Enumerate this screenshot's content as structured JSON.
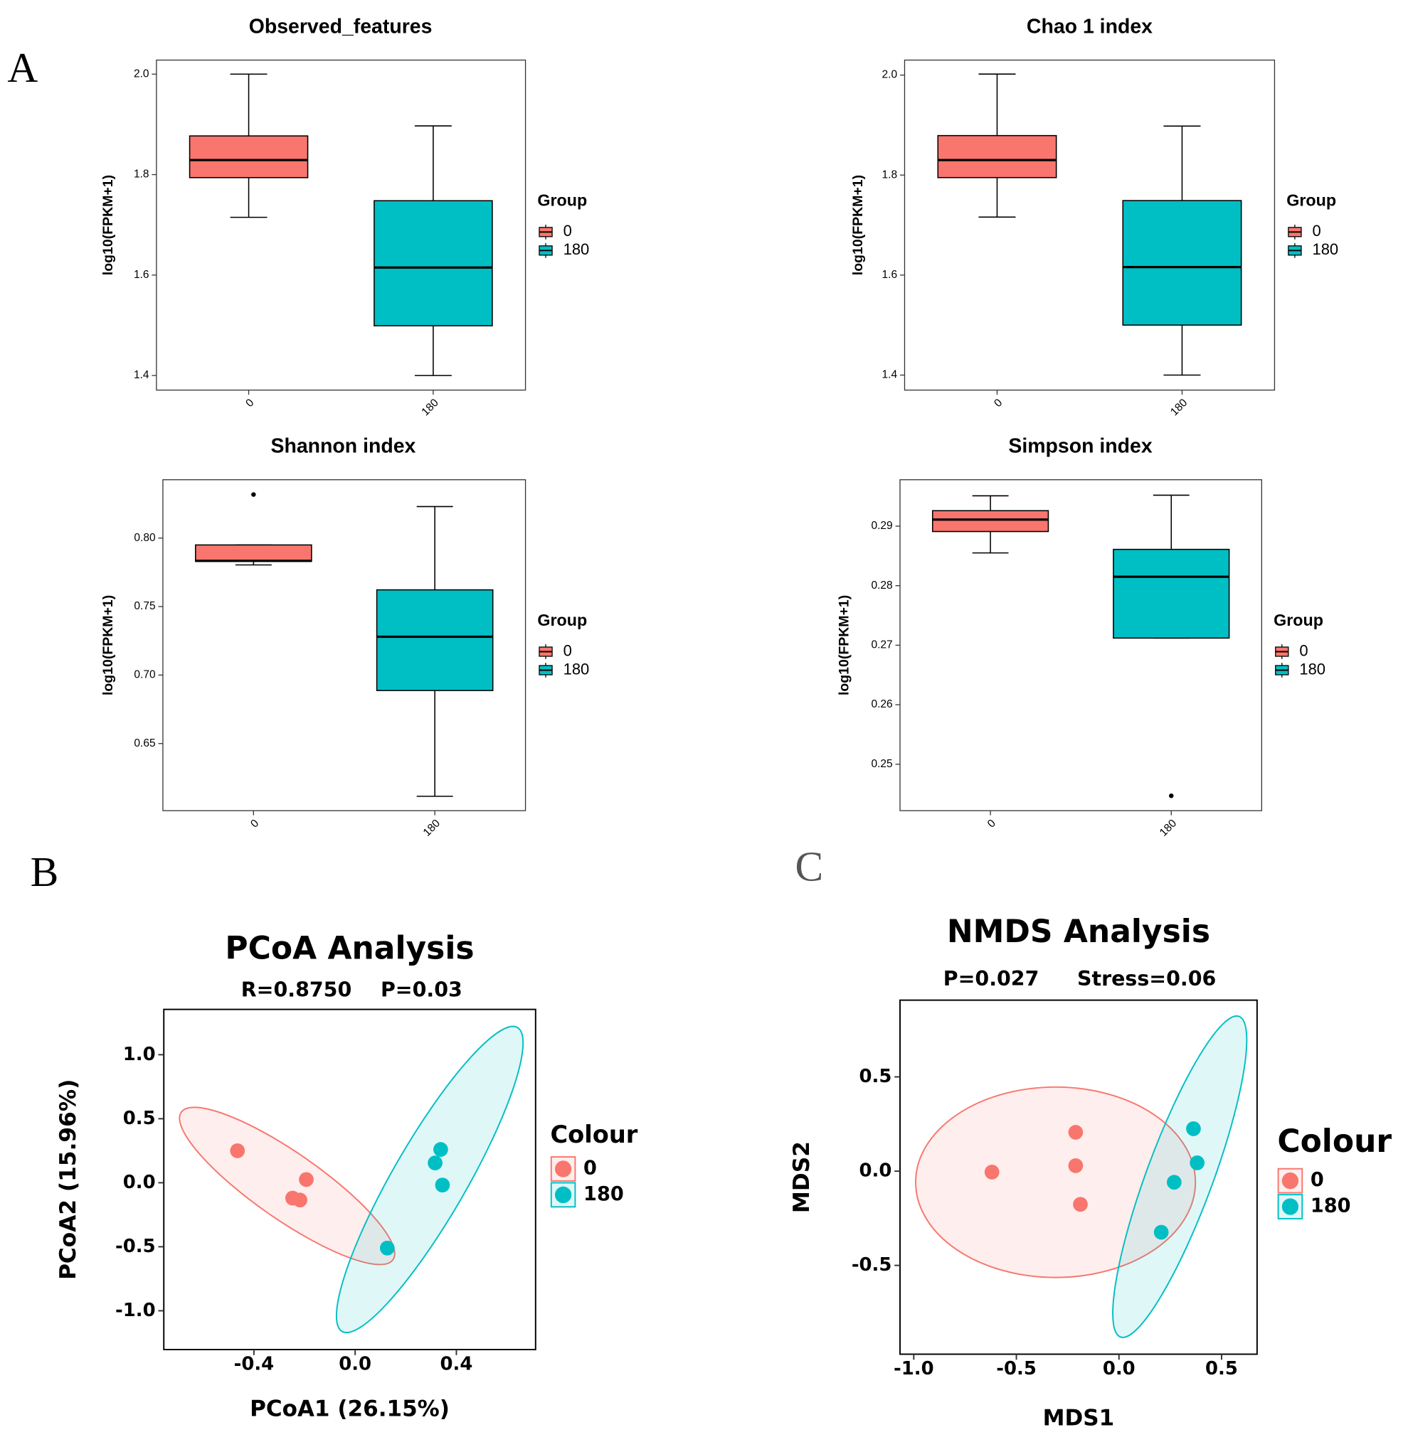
{
  "panels": [
    "A",
    "B",
    "C"
  ],
  "chart_data": [
    {
      "type": "box",
      "title": "Observed_features",
      "y_label": "log10(FPKM+1)",
      "legend_title": "Group",
      "categories": [
        "0",
        "180"
      ],
      "ylim": [
        1.371,
        2.028
      ],
      "yticks": [
        {
          "value": 1.4,
          "label": "1.4"
        },
        1.6,
        1.8,
        {
          "value": 2.0,
          "label": "2.0"
        }
      ],
      "series": [
        {
          "name": "0",
          "color": "#F8766D",
          "min": 1.715,
          "q1": 1.794,
          "median": 1.829,
          "q3": 1.877,
          "max": 2.0,
          "outliers": []
        },
        {
          "name": "180",
          "color": "#00BFC4",
          "min": 1.4,
          "q1": 1.499,
          "median": 1.615,
          "q3": 1.748,
          "max": 1.897,
          "outliers": []
        }
      ]
    },
    {
      "type": "box",
      "title": "Chao 1 index",
      "y_label": "log10(FPKM+1)",
      "legend_title": "Group",
      "categories": [
        "0",
        "180"
      ],
      "ylim": [
        1.37,
        2.03
      ],
      "yticks": [
        1.4,
        1.6,
        1.8,
        {
          "value": 2.0,
          "label": "2.0"
        }
      ],
      "series": [
        {
          "name": "0",
          "color": "#F8766D",
          "min": 1.716,
          "q1": 1.795,
          "median": 1.83,
          "q3": 1.879,
          "max": 2.002,
          "outliers": []
        },
        {
          "name": "180",
          "color": "#00BFC4",
          "min": 1.4,
          "q1": 1.5,
          "median": 1.616,
          "q3": 1.749,
          "max": 1.898,
          "outliers": []
        }
      ]
    },
    {
      "type": "box",
      "title": "Shannon index",
      "y_label": "log10(FPKM+1)",
      "legend_title": "Group",
      "categories": [
        "0",
        "180"
      ],
      "ylim": [
        0.601,
        0.8426
      ],
      "yticks": [
        0.65,
        {
          "value": 0.7,
          "label": "0.70"
        },
        0.75,
        {
          "value": 0.8,
          "label": "0.80"
        }
      ],
      "series": [
        {
          "name": "0",
          "color": "#F8766D",
          "min": 0.7804,
          "q1": 0.783,
          "median": 0.7834,
          "q3": 0.795,
          "max": 0.795,
          "outliers": [
            0.8318
          ]
        },
        {
          "name": "180",
          "color": "#00BFC4",
          "min": 0.6115,
          "q1": 0.6887,
          "median": 0.728,
          "q3": 0.7622,
          "max": 0.823,
          "outliers": []
        }
      ]
    },
    {
      "type": "box",
      "title": "Simpson index",
      "y_label": "log10(FPKM+1)",
      "legend_title": "Group",
      "categories": [
        "0",
        "180"
      ],
      "ylim": [
        0.2422,
        0.2978
      ],
      "yticks": [
        0.25,
        0.26,
        0.27,
        0.28,
        0.29
      ],
      "series": [
        {
          "name": "0",
          "color": "#F8766D",
          "min": 0.2855,
          "q1": 0.2891,
          "median": 0.2911,
          "q3": 0.2926,
          "max": 0.2951,
          "outliers": []
        },
        {
          "name": "180",
          "color": "#00BFC4",
          "min": 0.2712,
          "q1": 0.2712,
          "median": 0.2815,
          "q3": 0.2861,
          "max": 0.2952,
          "outliers": [
            0.2447
          ]
        }
      ]
    },
    {
      "type": "scatter",
      "title": "PCoA Analysis",
      "subtitle": [
        "R=0.8750",
        "P=0.03"
      ],
      "x_label": "PCoA1 (26.15%)",
      "y_label": "PCoA2 (15.96%)",
      "legend_title": "Colour",
      "xlim": [
        -0.756,
        0.713
      ],
      "ylim": [
        -1.303,
        1.354
      ],
      "xticks": [
        -0.4,
        {
          "value": 0.0,
          "label": "0.0"
        },
        0.4
      ],
      "yticks": [
        {
          "value": -1.0,
          "label": "-1.0"
        },
        -0.5,
        {
          "value": 0.0,
          "label": "0.0"
        },
        0.5,
        {
          "value": 1.0,
          "label": "1.0"
        }
      ],
      "series": [
        {
          "name": "0",
          "color": "#F8766D",
          "x": [
            -0.465,
            -0.193,
            -0.247,
            -0.218
          ],
          "y": [
            0.25,
            0.025,
            -0.12,
            -0.135
          ]
        },
        {
          "name": "180",
          "color": "#00BFC4",
          "x": [
            0.338,
            0.316,
            0.345,
            0.127
          ],
          "y": [
            0.26,
            0.155,
            -0.018,
            -0.51
          ]
        }
      ]
    },
    {
      "type": "scatter",
      "title": "NMDS Analysis",
      "subtitle": [
        "P=0.027",
        "Stress=0.06"
      ],
      "x_label": "MDS1",
      "y_label": "MDS2",
      "legend_title": "Colour",
      "xlim": [
        -1.067,
        0.673
      ],
      "ylim": [
        -0.971,
        0.907
      ],
      "xticks": [
        {
          "value": -1.0,
          "label": "-1.0"
        },
        -0.5,
        {
          "value": 0.0,
          "label": "0.0"
        },
        0.5
      ],
      "yticks": [
        -0.5,
        {
          "value": 0.0,
          "label": "0.0"
        },
        0.5
      ],
      "series": [
        {
          "name": "0",
          "color": "#F8766D",
          "x": [
            -0.619,
            -0.211,
            -0.211,
            -0.188
          ],
          "y": [
            -0.005,
            0.206,
            0.029,
            -0.176
          ]
        },
        {
          "name": "180",
          "color": "#00BFC4",
          "x": [
            0.363,
            0.381,
            0.269,
            0.206
          ],
          "y": [
            0.225,
            0.044,
            -0.059,
            -0.324
          ]
        }
      ]
    }
  ]
}
